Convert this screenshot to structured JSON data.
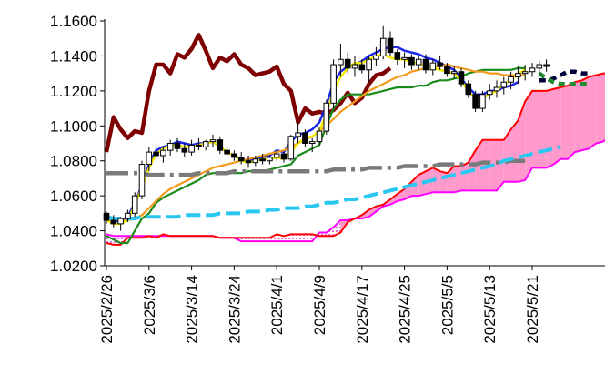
{
  "chart_data": {
    "type": "line",
    "title": "",
    "xlabel": "",
    "ylabel": "",
    "ylim": [
      1.02,
      1.16
    ],
    "yticks": [
      "1.1600",
      "1.1400",
      "1.1200",
      "1.1000",
      "1.0800",
      "1.0600",
      "1.0400",
      "1.0200"
    ],
    "xtick_labels": [
      "2025/2/26",
      "2025/3/6",
      "2025/3/14",
      "2025/3/24",
      "2025/4/1",
      "2025/4/9",
      "2025/4/17",
      "2025/4/25",
      "2025/5/5",
      "2025/5/13",
      "2025/5/21"
    ],
    "xtick_index": [
      0,
      6,
      12,
      18,
      24,
      30,
      36,
      42,
      48,
      54,
      60
    ],
    "n_periods": 75,
    "grid": false,
    "legend": "none",
    "candles": [
      [
        1.05,
        1.051,
        1.044,
        1.046
      ],
      [
        1.046,
        1.049,
        1.042,
        1.044
      ],
      [
        1.044,
        1.048,
        1.04,
        1.047
      ],
      [
        1.047,
        1.052,
        1.045,
        1.05
      ],
      [
        1.05,
        1.062,
        1.048,
        1.06
      ],
      [
        1.06,
        1.08,
        1.058,
        1.078
      ],
      [
        1.078,
        1.088,
        1.074,
        1.085
      ],
      [
        1.085,
        1.09,
        1.08,
        1.083
      ],
      [
        1.083,
        1.088,
        1.079,
        1.086
      ],
      [
        1.086,
        1.092,
        1.083,
        1.09
      ],
      [
        1.09,
        1.093,
        1.085,
        1.087
      ],
      [
        1.087,
        1.09,
        1.082,
        1.085
      ],
      [
        1.085,
        1.092,
        1.083,
        1.089
      ],
      [
        1.089,
        1.093,
        1.086,
        1.088
      ],
      [
        1.088,
        1.092,
        1.086,
        1.091
      ],
      [
        1.091,
        1.095,
        1.088,
        1.092
      ],
      [
        1.092,
        1.094,
        1.084,
        1.086
      ],
      [
        1.086,
        1.088,
        1.082,
        1.084
      ],
      [
        1.084,
        1.086,
        1.08,
        1.082
      ],
      [
        1.082,
        1.085,
        1.078,
        1.08
      ],
      [
        1.08,
        1.083,
        1.076,
        1.079
      ],
      [
        1.079,
        1.083,
        1.077,
        1.081
      ],
      [
        1.081,
        1.084,
        1.078,
        1.08
      ],
      [
        1.08,
        1.083,
        1.078,
        1.082
      ],
      [
        1.082,
        1.086,
        1.08,
        1.084
      ],
      [
        1.084,
        1.085,
        1.079,
        1.081
      ],
      [
        1.081,
        1.095,
        1.08,
        1.094
      ],
      [
        1.094,
        1.102,
        1.09,
        1.096
      ],
      [
        1.096,
        1.098,
        1.088,
        1.09
      ],
      [
        1.09,
        1.093,
        1.085,
        1.091
      ],
      [
        1.091,
        1.099,
        1.089,
        1.097
      ],
      [
        1.097,
        1.115,
        1.095,
        1.113
      ],
      [
        1.113,
        1.138,
        1.11,
        1.135
      ],
      [
        1.135,
        1.147,
        1.128,
        1.138
      ],
      [
        1.138,
        1.142,
        1.13,
        1.133
      ],
      [
        1.133,
        1.14,
        1.128,
        1.135
      ],
      [
        1.135,
        1.138,
        1.13,
        1.132
      ],
      [
        1.132,
        1.14,
        1.125,
        1.138
      ],
      [
        1.138,
        1.145,
        1.134,
        1.14
      ],
      [
        1.14,
        1.157,
        1.138,
        1.15
      ],
      [
        1.15,
        1.154,
        1.14,
        1.142
      ],
      [
        1.142,
        1.144,
        1.135,
        1.138
      ],
      [
        1.138,
        1.142,
        1.133,
        1.139
      ],
      [
        1.139,
        1.141,
        1.132,
        1.135
      ],
      [
        1.135,
        1.14,
        1.132,
        1.138
      ],
      [
        1.138,
        1.141,
        1.13,
        1.132
      ],
      [
        1.132,
        1.138,
        1.129,
        1.136
      ],
      [
        1.136,
        1.14,
        1.132,
        1.134
      ],
      [
        1.134,
        1.136,
        1.128,
        1.13
      ],
      [
        1.13,
        1.134,
        1.127,
        1.131
      ],
      [
        1.131,
        1.133,
        1.122,
        1.124
      ],
      [
        1.124,
        1.126,
        1.116,
        1.118
      ],
      [
        1.118,
        1.12,
        1.108,
        1.11
      ],
      [
        1.11,
        1.12,
        1.108,
        1.118
      ],
      [
        1.118,
        1.124,
        1.115,
        1.12
      ],
      [
        1.12,
        1.126,
        1.116,
        1.122
      ],
      [
        1.122,
        1.128,
        1.118,
        1.125
      ],
      [
        1.125,
        1.131,
        1.121,
        1.128
      ],
      [
        1.128,
        1.134,
        1.124,
        1.13
      ],
      [
        1.13,
        1.135,
        1.126,
        1.131
      ],
      [
        1.131,
        1.136,
        1.128,
        1.133
      ],
      [
        1.133,
        1.137,
        1.129,
        1.135
      ],
      [
        1.135,
        1.138,
        1.131,
        1.134
      ]
    ],
    "series": [
      {
        "color": "#7f0000",
        "width": 4.5,
        "dash": "",
        "values": [
          1.085,
          1.105,
          1.098,
          1.093,
          1.097,
          1.096,
          1.12,
          1.135,
          1.135,
          1.13,
          1.141,
          1.139,
          1.144,
          1.152,
          1.143,
          1.133,
          1.139,
          1.137,
          1.141,
          1.135,
          1.133,
          1.129,
          1.13,
          1.131,
          1.134,
          1.124,
          1.12,
          1.102,
          1.11,
          1.107,
          1.108,
          1.107,
          1.109,
          1.113,
          1.119,
          1.113,
          1.116,
          1.124,
          1.129,
          1.13,
          1.133
        ]
      },
      {
        "color": "#1c28e8",
        "width": 2.5,
        "dash": "",
        "values": [
          1.049,
          1.046,
          1.045,
          1.048,
          1.056,
          1.066,
          1.078,
          1.086,
          1.088,
          1.089,
          1.091,
          1.09,
          1.089,
          1.09,
          1.09,
          1.091,
          1.088,
          1.085,
          1.083,
          1.081,
          1.08,
          1.081,
          1.082,
          1.083,
          1.086,
          1.085,
          1.091,
          1.095,
          1.096,
          1.098,
          1.102,
          1.112,
          1.125,
          1.131,
          1.134,
          1.135,
          1.137,
          1.14,
          1.142,
          1.144,
          1.145,
          1.145,
          1.143,
          1.142,
          1.141,
          1.139,
          1.138,
          1.136,
          1.134,
          1.132,
          1.127,
          1.122,
          1.118,
          1.118,
          1.12,
          1.12,
          1.122,
          1.123,
          1.125
        ]
      },
      {
        "color": "#1a8a1a",
        "width": 2.2,
        "dash": "",
        "values": [
          1.037,
          1.035,
          1.033,
          1.033,
          1.04,
          1.047,
          1.05,
          1.056,
          1.059,
          1.061,
          1.063,
          1.065,
          1.067,
          1.069,
          1.072,
          1.073,
          1.073,
          1.073,
          1.073,
          1.073,
          1.074,
          1.074,
          1.074,
          1.075,
          1.076,
          1.077,
          1.078,
          1.083,
          1.085,
          1.087,
          1.089,
          1.1,
          1.11,
          1.115,
          1.118,
          1.118,
          1.118,
          1.118,
          1.119,
          1.12,
          1.121,
          1.122,
          1.122,
          1.122,
          1.123,
          1.123,
          1.125,
          1.126,
          1.126,
          1.127,
          1.128,
          1.13,
          1.131,
          1.132,
          1.132,
          1.132,
          1.132,
          1.132,
          1.133,
          1.133
        ]
      },
      {
        "color": "#f39a1a",
        "width": 2.2,
        "dash": "",
        "values": [
          1.048,
          1.047,
          1.046,
          1.046,
          1.047,
          1.049,
          1.053,
          1.057,
          1.061,
          1.064,
          1.066,
          1.068,
          1.07,
          1.072,
          1.074,
          1.076,
          1.077,
          1.078,
          1.079,
          1.08,
          1.081,
          1.082,
          1.083,
          1.084,
          1.085,
          1.086,
          1.088,
          1.09,
          1.092,
          1.094,
          1.097,
          1.1,
          1.104,
          1.108,
          1.111,
          1.114,
          1.117,
          1.12,
          1.122,
          1.124,
          1.126,
          1.128,
          1.129,
          1.131,
          1.132,
          1.133,
          1.134,
          1.134,
          1.135,
          1.134,
          1.133,
          1.132,
          1.131,
          1.131,
          1.13,
          1.13,
          1.129,
          1.129,
          1.129,
          1.129
        ]
      },
      {
        "color": "#f4ea00",
        "width": 2.5,
        "dash": "",
        "values": [
          1.046,
          1.044,
          1.044,
          1.046,
          1.055,
          1.065,
          1.076,
          1.084,
          1.087,
          1.089,
          1.089,
          1.088,
          1.088,
          1.089,
          1.09,
          1.091,
          1.088,
          1.085,
          1.083,
          1.08,
          1.079,
          1.08,
          1.081,
          1.081,
          1.082,
          1.081,
          1.085,
          1.09,
          1.093,
          1.094,
          1.097,
          1.107,
          1.12,
          1.128,
          1.133,
          1.136,
          1.136,
          1.138,
          1.14,
          1.141,
          1.139,
          1.138,
          1.138,
          1.136,
          1.136,
          1.134,
          1.133,
          1.132,
          1.131,
          1.13,
          1.126,
          1.12,
          1.116,
          1.116,
          1.118,
          1.12,
          1.124,
          1.126,
          1.13,
          1.132
        ]
      },
      {
        "color": "#7a7a7a",
        "width": 4.5,
        "dash": "24 6 4 6",
        "values": [
          1.073,
          1.073,
          1.073,
          1.073,
          1.073,
          1.073,
          1.072,
          1.072,
          1.072,
          1.072,
          1.072,
          1.072,
          1.072,
          1.073,
          1.073,
          1.073,
          1.073,
          1.073,
          1.074,
          1.074,
          1.074,
          1.074,
          1.074,
          1.074,
          1.074,
          1.074,
          1.074,
          1.074,
          1.074,
          1.074,
          1.074,
          1.074,
          1.075,
          1.075,
          1.075,
          1.075,
          1.075,
          1.076,
          1.076,
          1.076,
          1.076,
          1.076,
          1.077,
          1.077,
          1.077,
          1.077,
          1.077,
          1.078,
          1.078,
          1.078,
          1.078,
          1.078,
          1.078,
          1.079,
          1.079,
          1.079,
          1.079,
          1.08,
          1.08,
          1.08
        ]
      },
      {
        "color": "#29c6ef",
        "width": 4,
        "dash": "16 6",
        "values": [
          1.048,
          1.047,
          1.047,
          1.047,
          1.047,
          1.048,
          1.048,
          1.048,
          1.048,
          1.048,
          1.048,
          1.049,
          1.049,
          1.049,
          1.049,
          1.049,
          1.05,
          1.05,
          1.05,
          1.05,
          1.051,
          1.051,
          1.051,
          1.052,
          1.052,
          1.053,
          1.053,
          1.053,
          1.054,
          1.054,
          1.055,
          1.056,
          1.056,
          1.057,
          1.058,
          1.058,
          1.059,
          1.06,
          1.061,
          1.062,
          1.063,
          1.064,
          1.065,
          1.066,
          1.067,
          1.068,
          1.069,
          1.07,
          1.071,
          1.072,
          1.073,
          1.074,
          1.075,
          1.076,
          1.077,
          1.078,
          1.08,
          1.081,
          1.082,
          1.083,
          1.084,
          1.085,
          1.086,
          1.087,
          1.088
        ]
      },
      {
        "color": "#00003c",
        "width": 4.5,
        "dash": "7 5",
        "start": 61,
        "values": [
          1.126,
          1.126,
          1.127,
          1.129,
          1.131,
          1.131,
          1.13,
          1.13
        ]
      },
      {
        "color": "#208a30",
        "width": 4.5,
        "dash": "7 5",
        "start": 61,
        "values": [
          1.13,
          1.127,
          1.125,
          1.124,
          1.124,
          1.124,
          1.124,
          1.124
        ]
      }
    ],
    "cloud": {
      "span_a_color": "#ff0000",
      "span_b_color": "#ff00ff",
      "span_a": [
        1.033,
        1.032,
        1.032,
        1.036,
        1.036,
        1.036,
        1.037,
        1.036,
        1.038,
        1.037,
        1.037,
        1.037,
        1.037,
        1.037,
        1.037,
        1.037,
        1.036,
        1.036,
        1.036,
        1.036,
        1.036,
        1.036,
        1.036,
        1.036,
        1.038,
        1.037,
        1.038,
        1.038,
        1.038,
        1.038,
        1.037,
        1.037,
        1.037,
        1.039,
        1.045,
        1.047,
        1.049,
        1.052,
        1.054,
        1.055,
        1.058,
        1.061,
        1.064,
        1.068,
        1.072,
        1.074,
        1.076,
        1.074,
        1.073,
        1.077,
        1.077,
        1.079,
        1.086,
        1.092,
        1.092,
        1.092,
        1.092,
        1.098,
        1.103,
        1.114,
        1.12,
        1.12,
        1.12,
        1.121,
        1.122,
        1.123,
        1.125,
        1.126,
        1.128,
        1.129,
        1.13,
        1.13,
        1.13,
        1.131,
        1.131
      ],
      "span_b": [
        1.038,
        1.037,
        1.037,
        1.037,
        1.037,
        1.037,
        1.037,
        1.037,
        1.037,
        1.037,
        1.037,
        1.037,
        1.037,
        1.037,
        1.037,
        1.037,
        1.036,
        1.036,
        1.036,
        1.034,
        1.034,
        1.034,
        1.034,
        1.034,
        1.034,
        1.034,
        1.034,
        1.034,
        1.034,
        1.034,
        1.039,
        1.039,
        1.042,
        1.046,
        1.046,
        1.047,
        1.047,
        1.048,
        1.051,
        1.054,
        1.055,
        1.057,
        1.058,
        1.06,
        1.06,
        1.061,
        1.062,
        1.062,
        1.062,
        1.062,
        1.063,
        1.063,
        1.063,
        1.063,
        1.063,
        1.063,
        1.068,
        1.068,
        1.068,
        1.069,
        1.076,
        1.076,
        1.076,
        1.078,
        1.081,
        1.081,
        1.085,
        1.086,
        1.087,
        1.09,
        1.091,
        1.094,
        1.096,
        1.097,
        1.097
      ]
    }
  }
}
